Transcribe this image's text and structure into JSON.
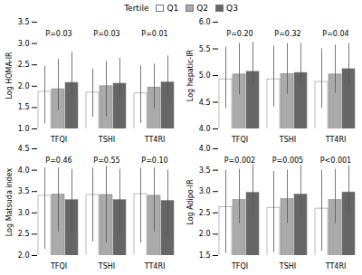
{
  "chart_data": [
    {
      "type": "bar",
      "ylabel": "Log HOMA-IR",
      "legend_title": "Tertile",
      "legend": "top",
      "grid": false,
      "categories": [
        "TFQI",
        "TSHI",
        "TT4RI"
      ],
      "series": [
        {
          "name": "Q1",
          "color": "#ffffff",
          "values": [
            1.87,
            1.85,
            1.83
          ],
          "err_low": [
            0.75,
            0.58,
            0.7
          ],
          "err_high": [
            0.6,
            0.55,
            0.65
          ]
        },
        {
          "name": "Q2",
          "color": "#aaaaaa",
          "values": [
            1.93,
            2.0,
            1.97
          ],
          "err_low": [
            0.5,
            0.72,
            0.5
          ],
          "err_high": [
            0.7,
            0.58,
            0.55
          ]
        },
        {
          "name": "Q3",
          "color": "#666666",
          "values": [
            2.08,
            2.06,
            2.09
          ],
          "err_low": [
            0.35,
            0.35,
            0.35
          ],
          "err_high": [
            0.72,
            0.6,
            0.62
          ]
        }
      ],
      "annotations": [
        "P=0.03",
        "P=0.03",
        "P=0.01"
      ],
      "ylim": [
        1.0,
        3.5
      ],
      "yticks": [
        {
          "value": 1.0,
          "label": "1.0"
        },
        1.5,
        {
          "value": 2.0,
          "label": "2.0"
        },
        2.5,
        {
          "value": 3.0,
          "label": "3.0"
        },
        3.5
      ]
    },
    {
      "type": "bar",
      "ylabel": "Log hepatic-IR",
      "legend": "top",
      "grid": false,
      "categories": [
        "TFQI",
        "TSHI",
        "TT4RI"
      ],
      "series": [
        {
          "name": "Q1",
          "color": "#ffffff",
          "values": [
            4.93,
            4.93,
            4.88
          ],
          "err_low": [
            0.55,
            0.52,
            0.5
          ],
          "err_high": [
            0.6,
            0.62,
            0.62
          ]
        },
        {
          "name": "Q2",
          "color": "#aaaaaa",
          "values": [
            5.02,
            5.03,
            5.02
          ],
          "err_low": [
            0.38,
            0.38,
            0.35
          ],
          "err_high": [
            0.58,
            0.57,
            0.55
          ]
        },
        {
          "name": "Q3",
          "color": "#666666",
          "values": [
            5.07,
            5.05,
            5.12
          ],
          "err_low": [
            0.25,
            0.25,
            0.28
          ],
          "err_high": [
            0.55,
            0.55,
            0.48
          ]
        }
      ],
      "annotations": [
        "P=0.20",
        "P=0.32",
        "P=0.04"
      ],
      "ylim": [
        4.0,
        6.0
      ],
      "yticks": [
        {
          "value": 4.0,
          "label": "4.0"
        },
        4.5,
        {
          "value": 5.0,
          "label": "5.0"
        },
        5.5,
        {
          "value": 6.0,
          "label": "6.0"
        }
      ]
    },
    {
      "type": "bar",
      "ylabel": "Log Matsuda index",
      "legend": "top",
      "grid": false,
      "categories": [
        "TFQI",
        "TSHI",
        "TT4RI"
      ],
      "series": [
        {
          "name": "Q1",
          "color": "#ffffff",
          "values": [
            3.4,
            3.42,
            3.44
          ],
          "err_low": [
            1.25,
            1.1,
            1.15
          ],
          "err_high": [
            0.65,
            0.62,
            0.6
          ]
        },
        {
          "name": "Q2",
          "color": "#aaaaaa",
          "values": [
            3.43,
            3.42,
            3.4
          ],
          "err_low": [
            0.88,
            1.13,
            0.85
          ],
          "err_high": [
            0.62,
            0.68,
            0.65
          ]
        },
        {
          "name": "Q3",
          "color": "#666666",
          "values": [
            3.3,
            3.3,
            3.28
          ],
          "err_low": [
            0.8,
            0.82,
            0.8
          ],
          "err_high": [
            0.72,
            0.72,
            0.72
          ]
        }
      ],
      "annotations": [
        "P=0.46",
        "P=0.55",
        "P=0.10"
      ],
      "ylim": [
        2.0,
        4.5
      ],
      "yticks": [
        {
          "value": 2.0,
          "label": "2.0"
        },
        2.5,
        {
          "value": 3.0,
          "label": "3.0"
        },
        3.5,
        {
          "value": 4.0,
          "label": "4.0"
        },
        4.5
      ]
    },
    {
      "type": "bar",
      "ylabel": "Log Adipo-IR",
      "legend": "top",
      "grid": false,
      "categories": [
        "TFQI",
        "TSHI",
        "TT4RI"
      ],
      "series": [
        {
          "name": "Q1",
          "color": "#ffffff",
          "values": [
            2.63,
            2.62,
            2.6
          ],
          "err_low": [
            1.08,
            1.05,
            1.0
          ],
          "err_high": [
            0.87,
            0.85,
            0.9
          ]
        },
        {
          "name": "Q2",
          "color": "#aaaaaa",
          "values": [
            2.8,
            2.82,
            2.8
          ],
          "err_low": [
            0.55,
            0.57,
            0.55
          ],
          "err_high": [
            0.72,
            0.68,
            0.72
          ]
        },
        {
          "name": "Q3",
          "color": "#666666",
          "values": [
            2.97,
            2.93,
            2.98
          ],
          "err_low": [
            0.52,
            0.5,
            0.52
          ],
          "err_high": [
            0.65,
            0.68,
            0.62
          ]
        }
      ],
      "annotations": [
        "P=0.002",
        "P=0.005",
        "P<0.001"
      ],
      "ylim": [
        1.5,
        4.0
      ],
      "yticks": [
        {
          "value": 1.5,
          "label": "1.5"
        },
        {
          "value": 2.0,
          "label": "2.0"
        },
        2.5,
        {
          "value": 3.0,
          "label": "3.0"
        },
        3.5,
        {
          "value": 4.0,
          "label": "4.0"
        }
      ]
    }
  ]
}
